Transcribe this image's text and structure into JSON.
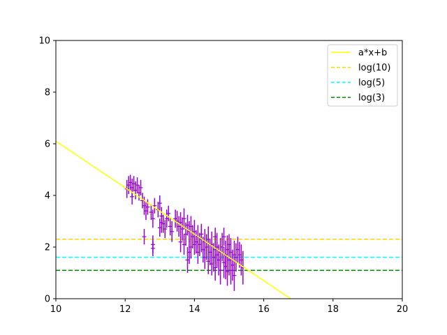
{
  "chart_data": {
    "type": "scatter",
    "xlim": [
      10,
      20
    ],
    "ylim": [
      0,
      10
    ],
    "x_ticks": [
      "10",
      "12",
      "14",
      "16",
      "18",
      "20"
    ],
    "y_ticks": [
      "0",
      "2",
      "4",
      "6",
      "8",
      "10"
    ],
    "grid": false,
    "legend_position": "top-right",
    "legend": [
      {
        "label": "a*x+b",
        "color": "#ffff00",
        "style": "solid"
      },
      {
        "label": "log(10)",
        "color": "#ffd700",
        "style": "dashed"
      },
      {
        "label": "log(5)",
        "color": "#00ffff",
        "style": "dashed"
      },
      {
        "label": "log(3)",
        "color": "#008000",
        "style": "dashed"
      }
    ],
    "fit_line": {
      "slope": -0.9,
      "intercept": 15.1,
      "color": "#ffff00"
    },
    "hlines": [
      {
        "y": 2.303,
        "color": "#ffd700"
      },
      {
        "y": 1.609,
        "color": "#00ffff"
      },
      {
        "y": 1.099,
        "color": "#008000"
      }
    ],
    "errorbar_color": "#9400d3",
    "points": [
      [
        12.05,
        4.25,
        0.35
      ],
      [
        12.1,
        4.4,
        0.35
      ],
      [
        12.15,
        4.5,
        0.3
      ],
      [
        12.2,
        4.3,
        0.35
      ],
      [
        12.25,
        4.45,
        0.3
      ],
      [
        12.3,
        4.2,
        0.35
      ],
      [
        12.35,
        4.4,
        0.3
      ],
      [
        12.4,
        4.1,
        0.3
      ],
      [
        12.45,
        4.3,
        0.3
      ],
      [
        12.2,
        3.95,
        0.3
      ],
      [
        12.5,
        3.8,
        0.3
      ],
      [
        12.55,
        3.6,
        0.35
      ],
      [
        12.6,
        3.4,
        0.35
      ],
      [
        12.65,
        3.55,
        0.3
      ],
      [
        12.75,
        3.35,
        0.3
      ],
      [
        12.8,
        3.1,
        0.35
      ],
      [
        12.85,
        3.6,
        0.3
      ],
      [
        12.95,
        3.45,
        0.3
      ],
      [
        13.0,
        3.7,
        0.3
      ],
      [
        13.05,
        3.2,
        0.35
      ],
      [
        13.1,
        2.9,
        0.35
      ],
      [
        13.15,
        2.7,
        0.35
      ],
      [
        13.2,
        3.1,
        0.35
      ],
      [
        13.25,
        3.3,
        0.3
      ],
      [
        13.3,
        2.8,
        0.35
      ],
      [
        13.0,
        2.75,
        0.35
      ],
      [
        13.05,
        2.95,
        0.4
      ],
      [
        12.55,
        2.4,
        0.3
      ],
      [
        12.8,
        2.1,
        0.35
      ],
      [
        12.8,
        1.95,
        0.3
      ],
      [
        13.5,
        3.0,
        0.4
      ],
      [
        13.55,
        2.8,
        0.4
      ],
      [
        13.6,
        2.95,
        0.4
      ],
      [
        13.65,
        2.7,
        0.45
      ],
      [
        13.7,
        3.1,
        0.4
      ],
      [
        13.75,
        2.5,
        0.45
      ],
      [
        13.8,
        2.85,
        0.4
      ],
      [
        13.85,
        2.6,
        0.4
      ],
      [
        13.9,
        2.8,
        0.4
      ],
      [
        13.95,
        2.4,
        0.45
      ],
      [
        14.0,
        2.6,
        0.45
      ],
      [
        14.05,
        2.2,
        0.45
      ],
      [
        13.6,
        2.2,
        0.4
      ],
      [
        13.7,
        2.1,
        0.4
      ],
      [
        13.8,
        1.5,
        0.5
      ],
      [
        13.85,
        1.8,
        0.45
      ],
      [
        14.1,
        2.4,
        0.45
      ],
      [
        14.15,
        2.1,
        0.45
      ],
      [
        14.2,
        2.3,
        0.5
      ],
      [
        14.25,
        1.9,
        0.5
      ],
      [
        14.3,
        2.2,
        0.5
      ],
      [
        14.35,
        2.0,
        0.5
      ],
      [
        14.4,
        2.3,
        0.5
      ],
      [
        14.45,
        1.8,
        0.5
      ],
      [
        14.5,
        2.1,
        0.5
      ],
      [
        14.55,
        1.6,
        0.55
      ],
      [
        14.6,
        1.9,
        0.55
      ],
      [
        14.65,
        2.0,
        0.55
      ],
      [
        14.7,
        1.5,
        0.6
      ],
      [
        14.75,
        1.8,
        0.55
      ],
      [
        14.8,
        2.0,
        0.55
      ],
      [
        14.85,
        1.4,
        0.6
      ],
      [
        14.9,
        1.7,
        0.55
      ],
      [
        14.95,
        1.9,
        0.55
      ],
      [
        15.0,
        1.5,
        0.6
      ],
      [
        15.05,
        1.8,
        0.55
      ],
      [
        15.1,
        1.3,
        0.6
      ],
      [
        15.15,
        1.7,
        0.55
      ],
      [
        15.2,
        1.6,
        0.55
      ],
      [
        15.25,
        1.9,
        0.5
      ],
      [
        15.35,
        1.5,
        0.6
      ],
      [
        15.4,
        1.2,
        0.65
      ],
      [
        14.5,
        1.35,
        0.45
      ],
      [
        14.6,
        1.2,
        0.5
      ],
      [
        14.75,
        1.1,
        0.55
      ],
      [
        14.9,
        1.25,
        0.5
      ],
      [
        15.05,
        1.1,
        0.55
      ],
      [
        15.15,
        0.9,
        0.6
      ],
      [
        14.3,
        1.6,
        0.45
      ],
      [
        14.4,
        1.45,
        0.5
      ],
      [
        14.6,
        2.4,
        0.35
      ],
      [
        14.85,
        2.4,
        0.35
      ],
      [
        15.0,
        2.1,
        0.4
      ],
      [
        14.2,
        2.5,
        0.4
      ],
      [
        14.0,
        2.1,
        0.4
      ],
      [
        14.1,
        1.8,
        0.45
      ],
      [
        15.3,
        1.7,
        0.5
      ],
      [
        14.95,
        1.05,
        0.55
      ],
      [
        14.65,
        1.7,
        0.5
      ],
      [
        13.45,
        3.1,
        0.35
      ],
      [
        13.35,
        2.6,
        0.4
      ],
      [
        13.9,
        2.0,
        0.45
      ]
    ]
  }
}
